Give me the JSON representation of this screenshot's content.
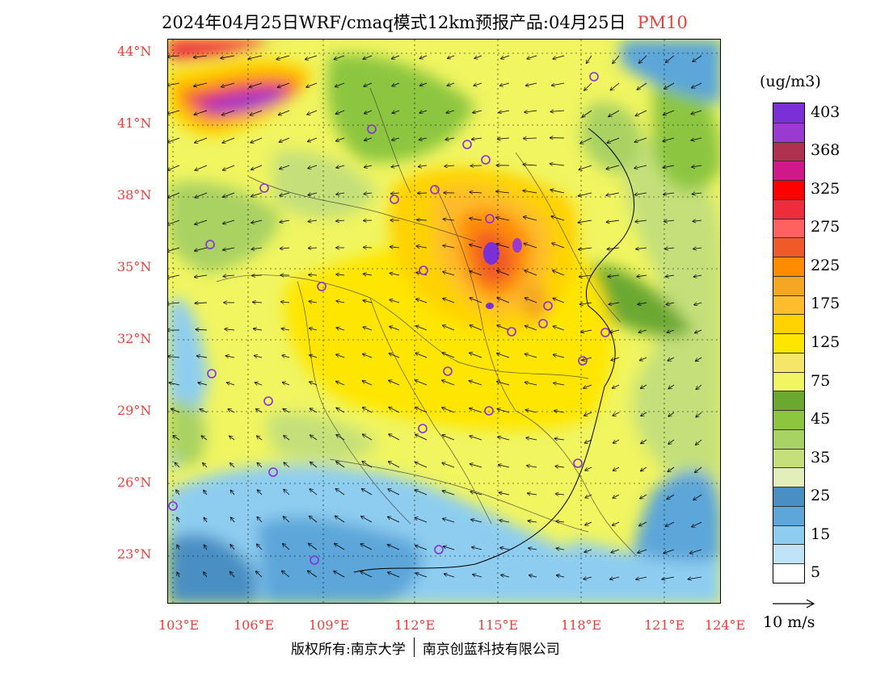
{
  "title": "2024年04月25日WRF/cmaq模式12km预报产品:04月25日",
  "species": "PM10",
  "lat_labels": [
    "44°N",
    "41°N",
    "38°N",
    "35°N",
    "32°N",
    "29°N",
    "26°N",
    "23°N"
  ],
  "lon_labels": [
    "103°E",
    "106°E",
    "109°E",
    "112°E",
    "115°E",
    "118°E",
    "121°E",
    "124°E"
  ],
  "legend": {
    "unit": "(ug/m3)",
    "levels": [
      {
        "label": "403",
        "color": "#7b2fd6"
      },
      {
        "label": "",
        "color": "#9a3ad0"
      },
      {
        "label": "368",
        "color": "#b0304f"
      },
      {
        "label": "",
        "color": "#d0188a"
      },
      {
        "label": "325",
        "color": "#ff0000"
      },
      {
        "label": "",
        "color": "#ee2c3c"
      },
      {
        "label": "275",
        "color": "#ff6060"
      },
      {
        "label": "",
        "color": "#f05a28"
      },
      {
        "label": "225",
        "color": "#ff8c00"
      },
      {
        "label": "",
        "color": "#f5a623"
      },
      {
        "label": "175",
        "color": "#ffbc2c"
      },
      {
        "label": "",
        "color": "#ffd200"
      },
      {
        "label": "125",
        "color": "#ffe600"
      },
      {
        "label": "",
        "color": "#f5e66a"
      },
      {
        "label": "75",
        "color": "#f0f560"
      },
      {
        "label": "",
        "color": "#6aa830"
      },
      {
        "label": "45",
        "color": "#8cc63f"
      },
      {
        "label": "",
        "color": "#a9d264"
      },
      {
        "label": "35",
        "color": "#c5e07a"
      },
      {
        "label": "",
        "color": "#e2efbb"
      },
      {
        "label": "25",
        "color": "#4a8fc4"
      },
      {
        "label": "",
        "color": "#5ca6d9"
      },
      {
        "label": "15",
        "color": "#8ecdf0"
      },
      {
        "label": "",
        "color": "#bfe4f7"
      },
      {
        "label": "5",
        "color": "#ffffff"
      }
    ]
  },
  "wind_key": {
    "label": "10 m/s"
  },
  "footer": {
    "left": "版权所有:南京大学",
    "right": "南京创蓝科技有限公司"
  },
  "colors": {
    "accent_red": "#e8403a",
    "station_marker": "#8a2be2"
  }
}
